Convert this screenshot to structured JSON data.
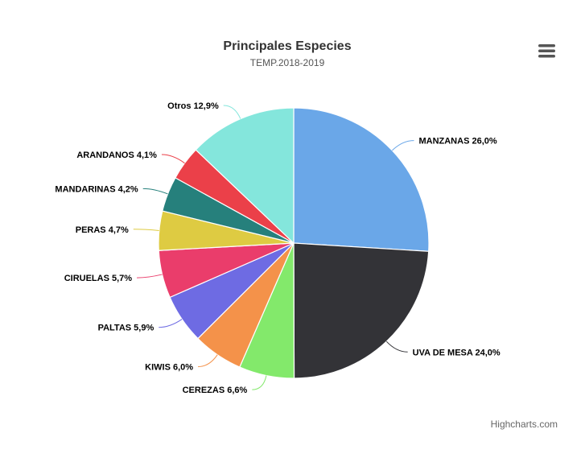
{
  "chart_data": {
    "type": "pie",
    "title": "Principales Especies",
    "subtitle": "TEMP.2018-2019",
    "slices": [
      {
        "name": "MANZANAS",
        "value": 26.0,
        "label": "MANZANAS 26,0%",
        "color": "#6aa7e8"
      },
      {
        "name": "UVA DE MESA",
        "value": 24.0,
        "label": "UVA DE MESA 24,0%",
        "color": "#333337"
      },
      {
        "name": "CEREZAS",
        "value": 6.6,
        "label": "CEREZAS 6,6%",
        "color": "#83e96b"
      },
      {
        "name": "KIWIS",
        "value": 6.0,
        "label": "KIWIS 6,0%",
        "color": "#f4924a"
      },
      {
        "name": "PALTAS",
        "value": 5.9,
        "label": "PALTAS 5,9%",
        "color": "#6e6be3"
      },
      {
        "name": "CIRUELAS",
        "value": 5.7,
        "label": "CIRUELAS 5,7%",
        "color": "#ea3d6b"
      },
      {
        "name": "PERAS",
        "value": 4.7,
        "label": "PERAS 4,7%",
        "color": "#decb42"
      },
      {
        "name": "MANDARINAS",
        "value": 4.2,
        "label": "MANDARINAS 4,2%",
        "color": "#26807c"
      },
      {
        "name": "ARANDANOS",
        "value": 4.1,
        "label": "ARANDANOS 4,1%",
        "color": "#eb4049"
      },
      {
        "name": "Otros",
        "value": 12.9,
        "label": "Otros 12,9%",
        "color": "#84e6dc"
      }
    ]
  },
  "menu": {
    "icon": "hamburger-menu-icon"
  },
  "credits": {
    "text": "Highcharts.com"
  }
}
